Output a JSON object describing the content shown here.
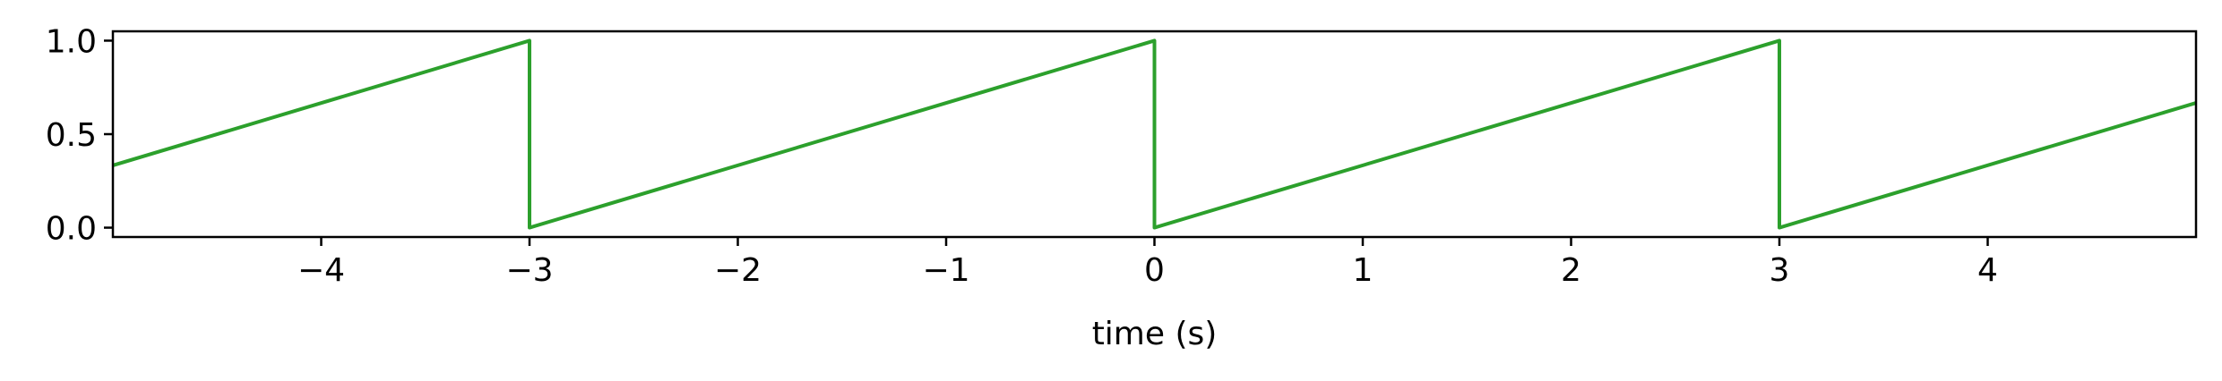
{
  "chart_data": {
    "type": "line",
    "title": "",
    "xlabel": "time (s)",
    "ylabel": "",
    "xlim": [
      -5,
      5
    ],
    "ylim": [
      -0.05,
      1.05
    ],
    "grid": false,
    "legend": "none",
    "x_ticks": [
      -4,
      -3,
      -2,
      -1,
      0,
      1,
      2,
      3,
      4
    ],
    "x_tick_labels": [
      "−4",
      "−3",
      "−2",
      "−1",
      "0",
      "1",
      "2",
      "3",
      "4"
    ],
    "y_ticks": [
      0.0,
      0.5,
      1.0
    ],
    "y_tick_labels": [
      "0.0",
      "0.5",
      "1.0"
    ],
    "series": [
      {
        "color": "#2ca02c",
        "x": [
          -5,
          -3,
          -3,
          0,
          0,
          3,
          3,
          5
        ],
        "y": [
          0.333,
          1.0,
          0.0,
          1.0,
          0.0,
          1.0,
          0.0,
          0.667
        ]
      }
    ]
  }
}
